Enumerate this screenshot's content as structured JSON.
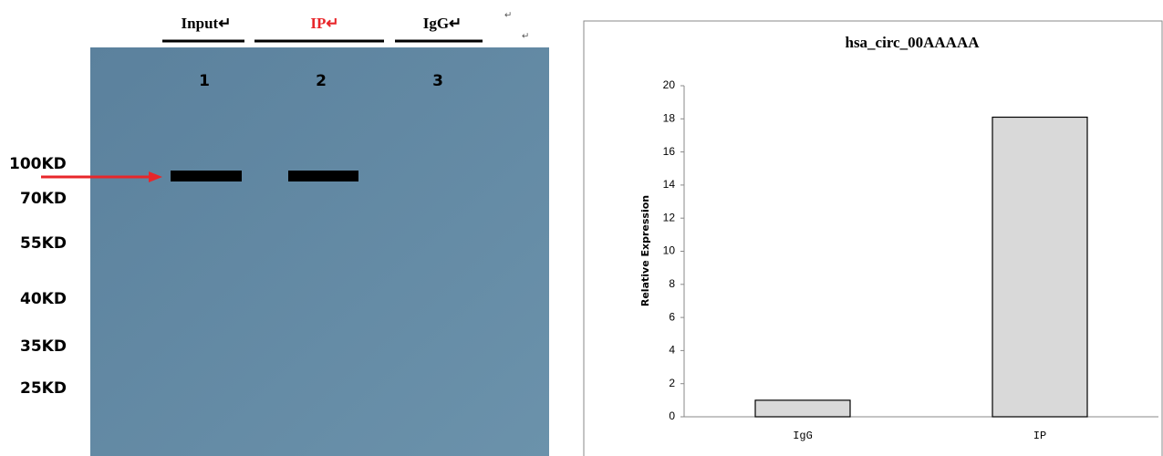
{
  "blot": {
    "lanes": [
      "Input↵",
      "IP↵",
      "IgG↵"
    ],
    "lane_numbers": [
      "1",
      "2",
      "3"
    ],
    "stray_marks": [
      "↵",
      "↵"
    ],
    "markers": [
      "100KD",
      "70KD",
      "55KD",
      "40KD",
      "35KD",
      "25KD"
    ]
  },
  "chart_data": {
    "type": "bar",
    "title": "hsa_circ_00AAAAA",
    "y_label": "Relative Expression",
    "categories": [
      "IgG",
      "IP"
    ],
    "values": [
      1,
      18.1
    ],
    "color": "#d9d9d9",
    "ylim": [
      0,
      20
    ],
    "yticks": [
      0,
      2,
      4,
      6,
      8,
      10,
      12,
      14,
      16,
      18,
      20
    ]
  }
}
